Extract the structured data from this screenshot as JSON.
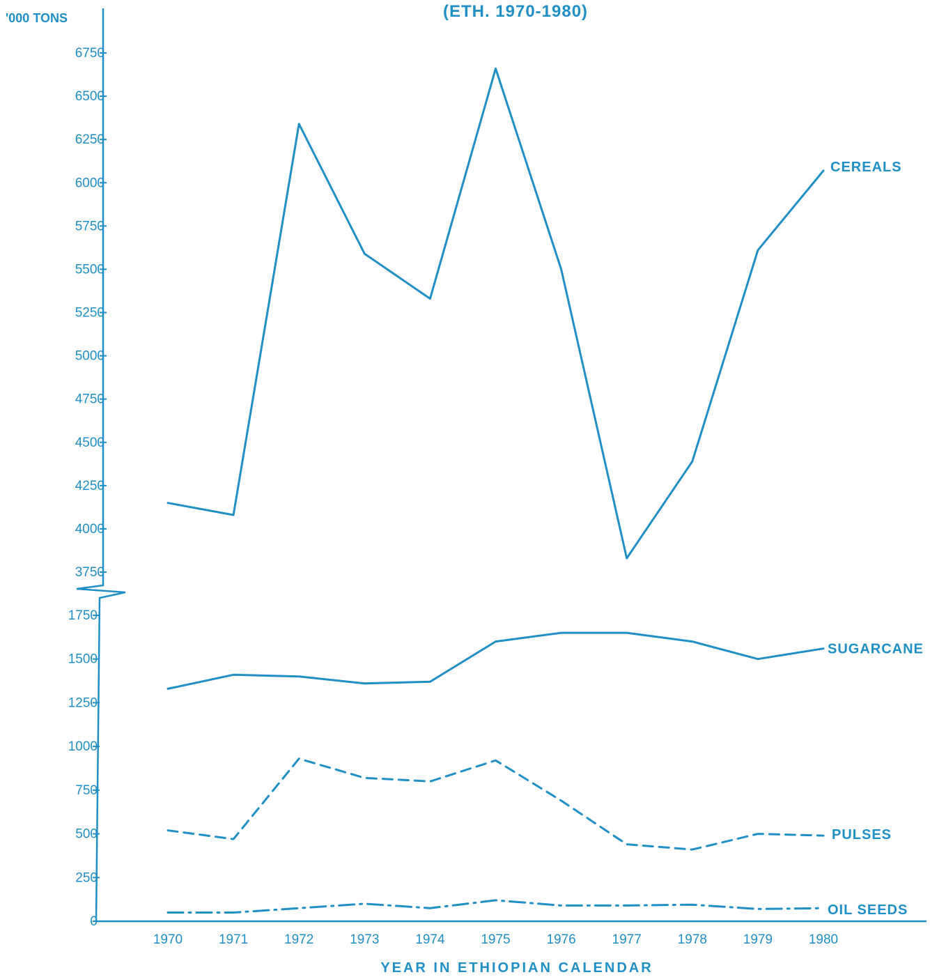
{
  "chart_data": {
    "type": "line",
    "title": "(ETH. 1970-1980)",
    "xlabel": "YEAR IN ETHIOPIAN CALENDAR",
    "ylabel": "'000 TONS",
    "x": [
      "1970",
      "1971",
      "1972",
      "1973",
      "1974",
      "1975",
      "1976",
      "1977",
      "1978",
      "1979",
      "1980"
    ],
    "y_ticks_upper": [
      "3750",
      "4000",
      "4250",
      "4500",
      "4750",
      "5000",
      "5250",
      "5500",
      "5750",
      "6000",
      "6250",
      "6500",
      "6750"
    ],
    "y_ticks_lower": [
      "0",
      "250",
      "500",
      "750",
      "1000",
      "1250",
      "1500",
      "1750"
    ],
    "ylim_upper": [
      3750,
      6750
    ],
    "ylim_lower": [
      0,
      1750
    ],
    "axis_break": "between 1750 and 3750",
    "grid": false,
    "legend": "labels at right end of each line",
    "color": "#1f8fc6",
    "series": [
      {
        "name": "CEREALS",
        "style": "solid",
        "scale": "upper",
        "values": [
          4150,
          4080,
          6340,
          5590,
          5330,
          6660,
          5500,
          3830,
          4390,
          5610,
          6070
        ]
      },
      {
        "name": "SUGARCANE",
        "style": "solid",
        "scale": "lower",
        "values": [
          1330,
          1410,
          1400,
          1360,
          1370,
          1600,
          1650,
          1650,
          1600,
          1500,
          1560
        ]
      },
      {
        "name": "PULSES",
        "style": "dashed",
        "scale": "lower",
        "values": [
          520,
          470,
          930,
          820,
          800,
          920,
          690,
          440,
          410,
          500,
          490
        ]
      },
      {
        "name": "OIL SEEDS",
        "style": "dash-dot",
        "scale": "lower",
        "values": [
          50,
          50,
          75,
          100,
          75,
          120,
          90,
          90,
          95,
          70,
          75
        ]
      }
    ]
  }
}
